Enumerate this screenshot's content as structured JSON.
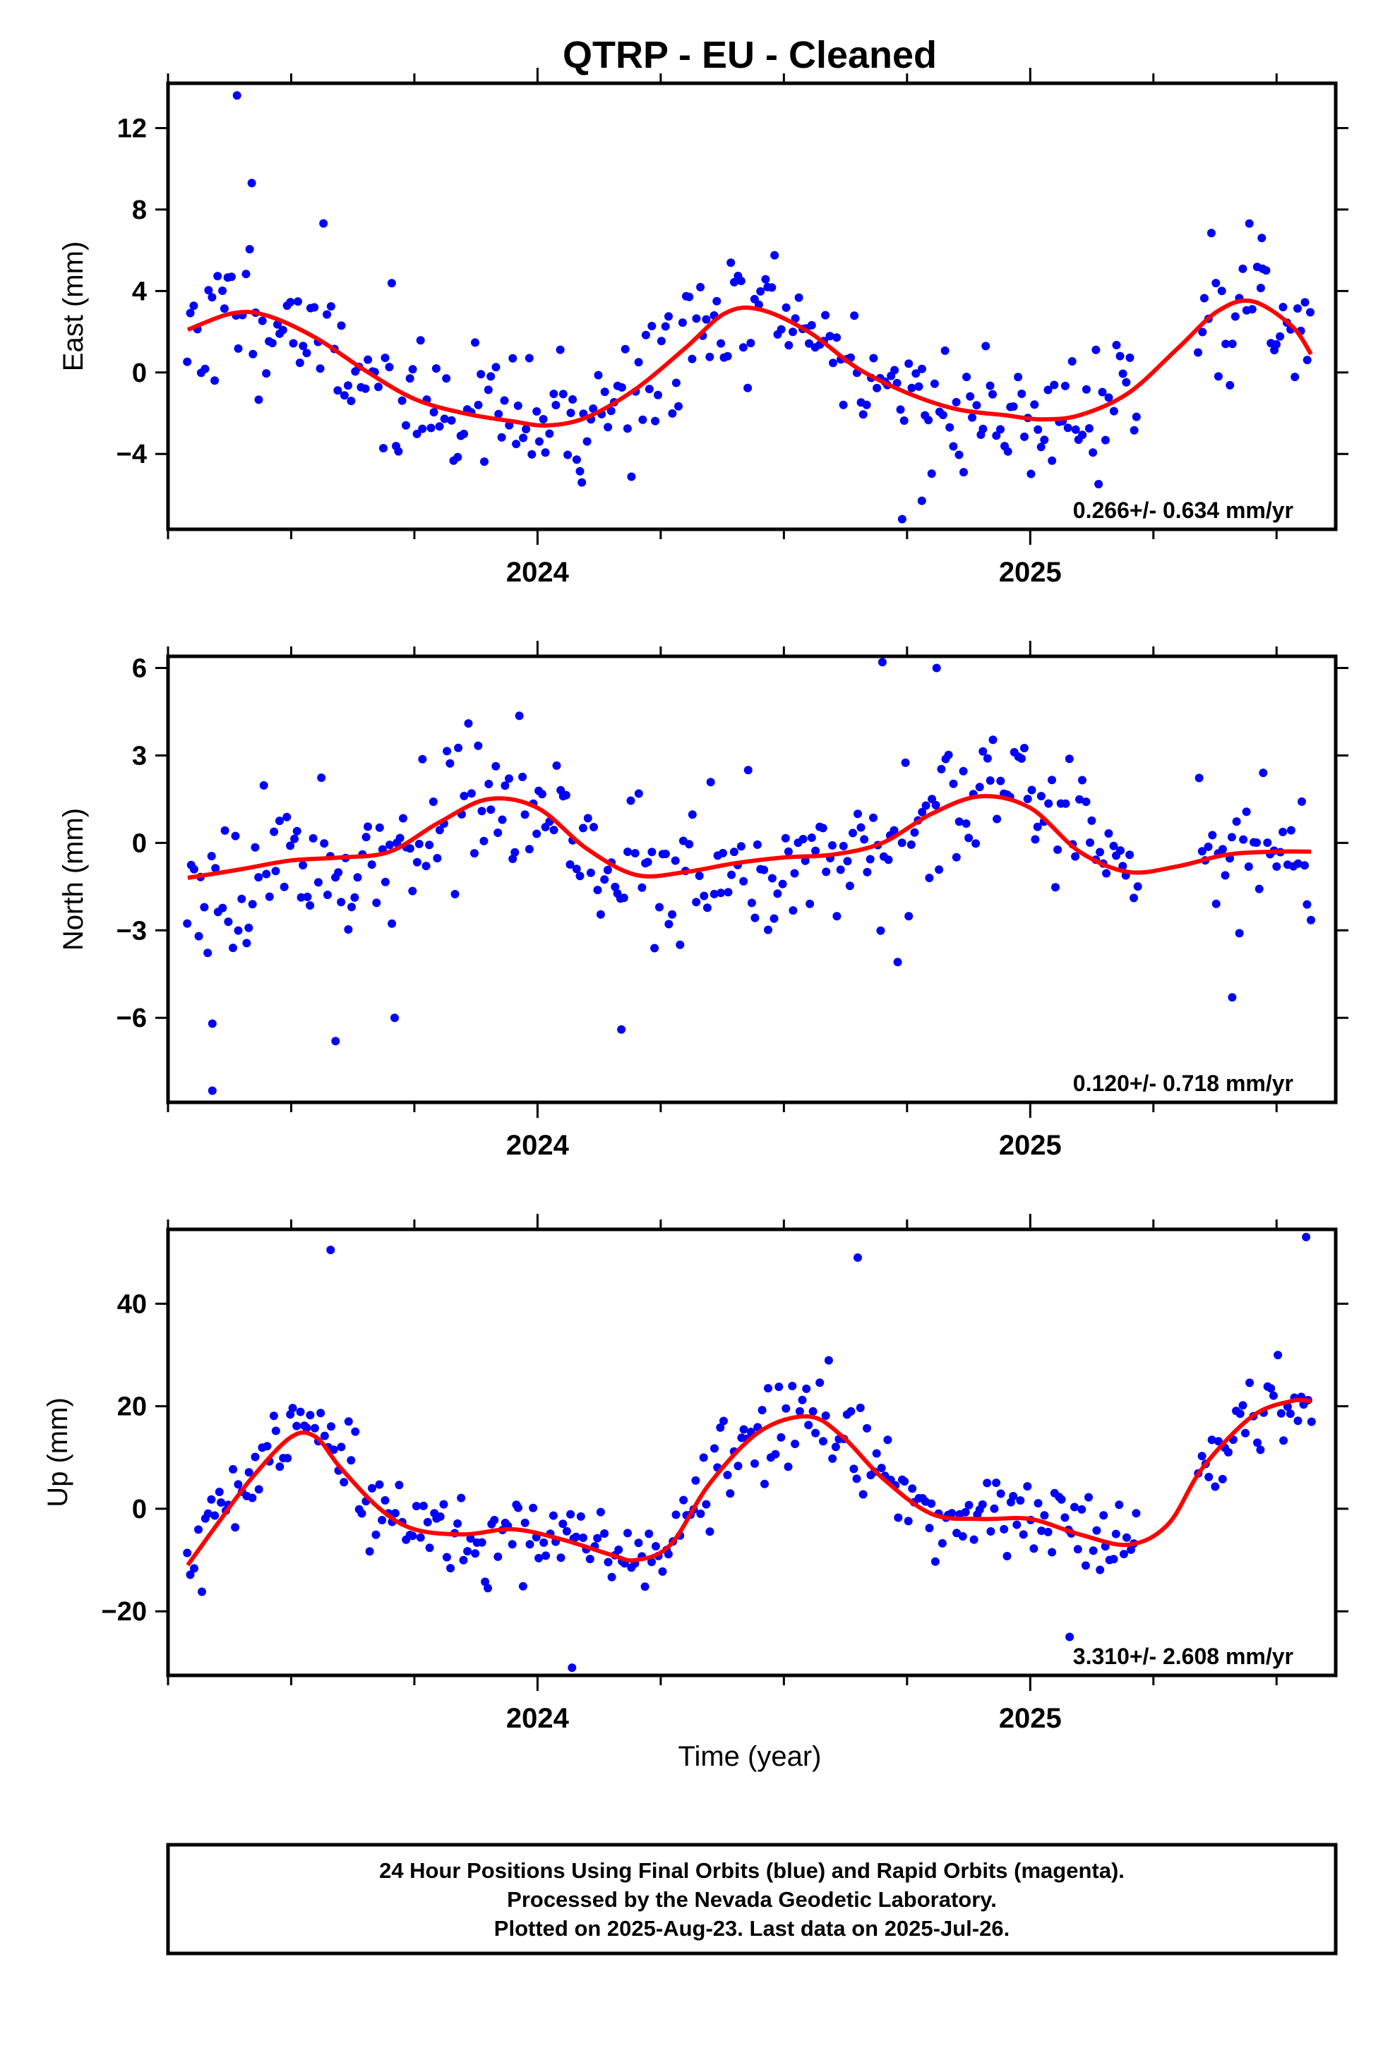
{
  "title": "QTRP  - EU - Cleaned",
  "xlabel": "Time (year)",
  "footer": {
    "line1": "24 Hour Positions Using Final Orbits (blue) and Rapid Orbits (magenta).",
    "line2": "Processed by the Nevada Geodetic Laboratory.",
    "line3": "Plotted on 2025-Aug-23. Last data on 2025-Jul-26."
  },
  "colors": {
    "points": "#0000ff",
    "fit": "#ff0000",
    "frame": "#000000"
  },
  "chart_data": [
    {
      "type": "scatter",
      "name": "East",
      "ylabel": "East (mm)",
      "rate_label": "0.266+/- 0.634 mm/yr",
      "xlim": [
        2023.25,
        2025.62
      ],
      "ylim": [
        -7.7,
        14.2
      ],
      "yticks": [
        -4,
        0,
        4,
        8,
        12
      ],
      "ytick_labels": [
        "−4",
        "0",
        "4",
        "8",
        "12"
      ],
      "xticks": [
        2024,
        2025
      ],
      "xtick_labels": [
        "2024",
        "2025"
      ],
      "seed": 11,
      "fit": {
        "x": [
          2023.29,
          2023.38,
          2023.45,
          2023.55,
          2023.65,
          2023.75,
          2023.85,
          2023.95,
          2024.02,
          2024.1,
          2024.2,
          2024.3,
          2024.38,
          2024.45,
          2024.55,
          2024.65,
          2024.75,
          2024.85,
          2024.95,
          2025.02,
          2025.1,
          2025.2,
          2025.3,
          2025.38,
          2025.45,
          2025.53,
          2025.57
        ],
        "y": [
          2.1,
          2.9,
          2.8,
          1.7,
          0.1,
          -1.3,
          -2.0,
          -2.4,
          -2.6,
          -2.2,
          -0.8,
          1.2,
          2.9,
          3.1,
          2.0,
          0.2,
          -1.0,
          -1.8,
          -2.1,
          -2.3,
          -2.1,
          -1.0,
          1.2,
          3.0,
          3.5,
          2.3,
          0.9
        ]
      },
      "scatter": 3.0,
      "points_x_end": 2025.57,
      "points_count": 330,
      "gaps": [
        [
          2025.22,
          2025.34
        ]
      ],
      "outliers": [
        {
          "x": 2023.39,
          "y": 13.6
        },
        {
          "x": 2023.42,
          "y": 9.3
        },
        {
          "x": 2024.09,
          "y": -5.4
        },
        {
          "x": 2024.74,
          "y": -7.2
        },
        {
          "x": 2024.78,
          "y": -6.3
        },
        {
          "x": 2025.47,
          "y": 6.6
        }
      ]
    },
    {
      "type": "scatter",
      "name": "North",
      "ylabel": "North (mm)",
      "rate_label": "0.120+/- 0.718 mm/yr",
      "xlim": [
        2023.25,
        2025.62
      ],
      "ylim": [
        -8.9,
        6.4
      ],
      "yticks": [
        -6,
        -3,
        0,
        3,
        6
      ],
      "ytick_labels": [
        "−6",
        "−3",
        "0",
        "3",
        "6"
      ],
      "xticks": [
        2024,
        2025
      ],
      "xtick_labels": [
        "2024",
        "2025"
      ],
      "seed": 23,
      "fit": {
        "x": [
          2023.29,
          2023.4,
          2023.5,
          2023.6,
          2023.7,
          2023.8,
          2023.9,
          2024.0,
          2024.1,
          2024.2,
          2024.3,
          2024.4,
          2024.5,
          2024.6,
          2024.7,
          2024.8,
          2024.9,
          2025.0,
          2025.1,
          2025.2,
          2025.3,
          2025.4,
          2025.5,
          2025.57
        ],
        "y": [
          -1.2,
          -0.9,
          -0.6,
          -0.5,
          -0.3,
          0.7,
          1.5,
          1.2,
          -0.2,
          -1.1,
          -1.0,
          -0.7,
          -0.5,
          -0.4,
          0.0,
          1.0,
          1.6,
          1.2,
          -0.3,
          -1.0,
          -0.8,
          -0.4,
          -0.3,
          -0.3
        ]
      },
      "scatter": 2.2,
      "points_x_end": 2025.57,
      "points_count": 330,
      "gaps": [
        [
          2025.22,
          2025.34
        ]
      ],
      "outliers": [
        {
          "x": 2023.34,
          "y": -8.5
        },
        {
          "x": 2023.34,
          "y": -6.2
        },
        {
          "x": 2023.59,
          "y": -6.8
        },
        {
          "x": 2023.71,
          "y": -6.0
        },
        {
          "x": 2024.17,
          "y": -6.4
        },
        {
          "x": 2024.7,
          "y": 6.2
        },
        {
          "x": 2024.81,
          "y": 6.0
        },
        {
          "x": 2025.41,
          "y": -5.3
        }
      ]
    },
    {
      "type": "scatter",
      "name": "Up",
      "ylabel": "Up (mm)",
      "rate_label": "3.310+/- 2.608 mm/yr",
      "xlim": [
        2023.25,
        2025.62
      ],
      "ylim": [
        -32.5,
        54.5
      ],
      "yticks": [
        -20,
        0,
        20,
        40
      ],
      "ytick_labels": [
        "−20",
        "0",
        "20",
        "40"
      ],
      "xticks": [
        2024,
        2025
      ],
      "xtick_labels": [
        "2024",
        "2025"
      ],
      "seed": 37,
      "fit": {
        "x": [
          2023.29,
          2023.35,
          2023.42,
          2023.5,
          2023.55,
          2023.6,
          2023.68,
          2023.75,
          2023.85,
          2023.95,
          2024.05,
          2024.15,
          2024.2,
          2024.27,
          2024.35,
          2024.45,
          2024.55,
          2024.62,
          2024.7,
          2024.8,
          2024.9,
          2025.0,
          2025.1,
          2025.2,
          2025.28,
          2025.35,
          2025.45,
          2025.53,
          2025.57
        ],
        "y": [
          -11,
          -3,
          6,
          14,
          14,
          8,
          0,
          -4,
          -5,
          -4,
          -6,
          -9,
          -10,
          -7,
          5,
          15,
          18,
          14,
          6,
          -1,
          -2,
          -2,
          -5,
          -7,
          -3,
          8,
          18,
          21,
          21
        ]
      },
      "scatter": 8.0,
      "points_x_end": 2025.57,
      "points_count": 330,
      "gaps": [
        [
          2025.22,
          2025.34
        ]
      ],
      "outliers": [
        {
          "x": 2023.58,
          "y": 50.5
        },
        {
          "x": 2024.07,
          "y": -31
        },
        {
          "x": 2024.65,
          "y": 49
        },
        {
          "x": 2025.08,
          "y": -25
        },
        {
          "x": 2025.56,
          "y": 53
        }
      ]
    }
  ]
}
